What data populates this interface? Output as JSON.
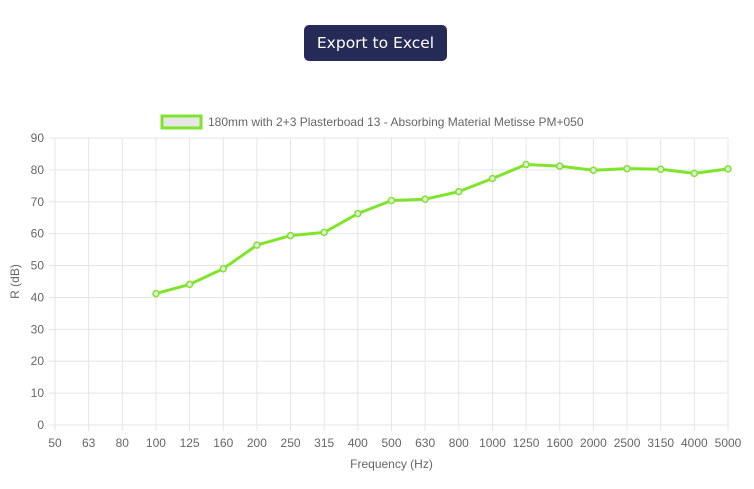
{
  "toolbar": {
    "export_label": "Export to Excel"
  },
  "colors": {
    "series_line": "#7ee52a",
    "legend_fill": "#e6e6e6",
    "grid": "#e5e5e5",
    "axis_text": "#666666",
    "button_bg": "#262a57"
  },
  "chart_data": {
    "type": "line",
    "xlabel": "Frequency (Hz)",
    "ylabel": "R (dB)",
    "ylim": [
      0,
      90
    ],
    "y_ticks": [
      "0",
      "10",
      "20",
      "30",
      "40",
      "50",
      "60",
      "70",
      "80",
      "90"
    ],
    "categories": [
      "50",
      "63",
      "80",
      "100",
      "125",
      "160",
      "200",
      "250",
      "315",
      "400",
      "500",
      "630",
      "800",
      "1000",
      "1250",
      "1600",
      "2000",
      "2500",
      "3150",
      "4000",
      "5000"
    ],
    "grid": true,
    "legend_position": "top",
    "series": [
      {
        "name": "180mm with 2+3 Plasterboad 13 -  Absorbing Material Metisse PM+050",
        "values": [
          null,
          null,
          null,
          41.2,
          44.1,
          49.0,
          56.4,
          59.4,
          60.4,
          66.3,
          70.4,
          70.8,
          73.2,
          77.3,
          81.7,
          81.2,
          79.9,
          80.4,
          80.2,
          78.9,
          80.3
        ]
      }
    ]
  }
}
